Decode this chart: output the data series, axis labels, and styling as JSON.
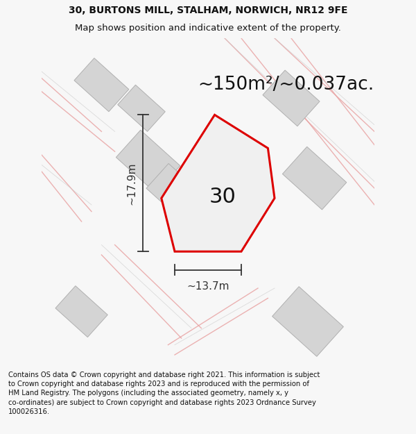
{
  "title": "30, BURTONS MILL, STALHAM, NORWICH, NR12 9FE",
  "subtitle": "Map shows position and indicative extent of the property.",
  "area_label": "~150m²/~0.037ac.",
  "height_label": "~17.9m",
  "width_label": "~13.7m",
  "plot_number": "30",
  "copyright": "Contains OS data © Crown copyright and database right 2021. This information is subject to Crown copyright and database rights 2023 and is reproduced with the permission of HM Land Registry. The polygons (including the associated geometry, namely x, y co-ordinates) are subject to Crown copyright and database rights 2023 Ordnance Survey 100026316.",
  "background_color": "#f7f7f7",
  "polygon_color": "#dd0000",
  "polygon_fill": "#f0f0f0",
  "building_color": "#d4d4d4",
  "building_edge": "#b0b0b0",
  "road_color": "#e8a0a0",
  "road_thin_color": "#c8c8c8",
  "dim_color": "#333333",
  "title_fontsize": 10,
  "subtitle_fontsize": 9.5,
  "area_fontsize": 19,
  "number_fontsize": 22,
  "dim_fontsize": 11,
  "copyright_fontsize": 7.2
}
